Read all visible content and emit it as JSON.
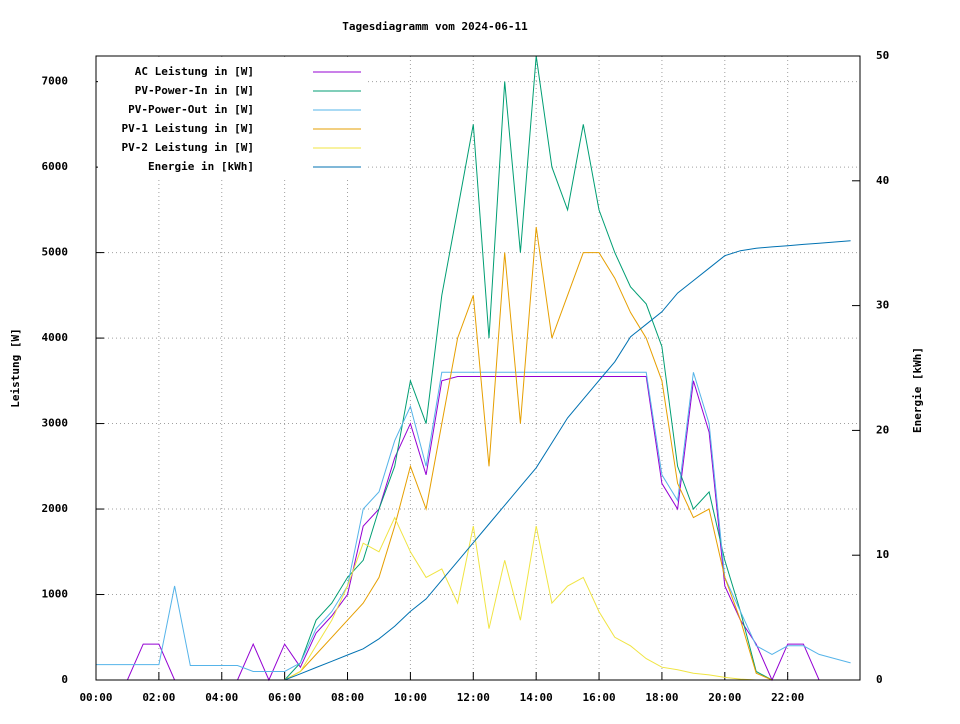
{
  "chart_data": {
    "type": "line",
    "title": "Tagesdiagramm vom 2024-06-11",
    "y_label": "Leistung [W]",
    "y2_label": "Energie [kWh]",
    "x": [
      0,
      0.5,
      1,
      1.5,
      2,
      2.5,
      3,
      3.5,
      4,
      4.5,
      5,
      5.5,
      6,
      6.5,
      7,
      7.5,
      8,
      8.5,
      9,
      9.5,
      10,
      10.5,
      11,
      11.5,
      12,
      12.5,
      13,
      13.5,
      14,
      14.5,
      15,
      15.5,
      16,
      16.5,
      17,
      17.5,
      18,
      18.5,
      19,
      19.5,
      20,
      20.5,
      21,
      21.5,
      22,
      22.5,
      23,
      23.5,
      24
    ],
    "xlim": [
      0,
      24.3
    ],
    "xticks": [
      {
        "value": 0,
        "label": "00:00"
      },
      {
        "value": 2,
        "label": "02:00"
      },
      {
        "value": 4,
        "label": "04:00"
      },
      {
        "value": 6,
        "label": "06:00"
      },
      {
        "value": 8,
        "label": "08:00"
      },
      {
        "value": 10,
        "label": "10:00"
      },
      {
        "value": 12,
        "label": "12:00"
      },
      {
        "value": 14,
        "label": "14:00"
      },
      {
        "value": 16,
        "label": "16:00"
      },
      {
        "value": 18,
        "label": "18:00"
      },
      {
        "value": 20,
        "label": "20:00"
      },
      {
        "value": 22,
        "label": "22:00"
      }
    ],
    "ylim": [
      0,
      7300
    ],
    "yticks": [
      0,
      1000,
      2000,
      3000,
      4000,
      5000,
      6000,
      7000
    ],
    "y2lim": [
      0,
      50
    ],
    "y2ticks": [
      0,
      10,
      20,
      30,
      40,
      50
    ],
    "grid": true,
    "legend": "top-left",
    "series": [
      {
        "name": "AC Leistung in [W]",
        "color": "#9400d3",
        "values": [
          0,
          0,
          0,
          420,
          420,
          0,
          0,
          0,
          0,
          0,
          420,
          0,
          420,
          150,
          550,
          750,
          1000,
          1800,
          2000,
          2600,
          3000,
          2400,
          3500,
          3550,
          3550,
          3550,
          3550,
          3550,
          3550,
          3550,
          3550,
          3550,
          3550,
          3550,
          3550,
          3550,
          2300,
          2000,
          3500,
          2900,
          1100,
          700,
          420,
          0,
          420,
          420,
          0,
          0,
          0
        ]
      },
      {
        "name": "PV-Power-In in [W]",
        "color": "#009e73",
        "values": [
          0,
          0,
          0,
          0,
          0,
          0,
          0,
          0,
          0,
          0,
          0,
          0,
          0,
          200,
          700,
          900,
          1200,
          1400,
          2000,
          2500,
          3500,
          3000,
          4500,
          5500,
          6500,
          4000,
          7000,
          5000,
          7300,
          6000,
          5500,
          6500,
          5500,
          5000,
          4600,
          4400,
          3900,
          2500,
          2000,
          2200,
          1400,
          800,
          100,
          0,
          0,
          0,
          0,
          0,
          0
        ]
      },
      {
        "name": "PV-Power-Out in [W]",
        "color": "#56b4e9",
        "values": [
          180,
          180,
          180,
          180,
          180,
          1100,
          170,
          170,
          170,
          170,
          100,
          100,
          100,
          200,
          600,
          800,
          1100,
          2000,
          2200,
          2800,
          3200,
          2500,
          3600,
          3600,
          3600,
          3600,
          3600,
          3600,
          3600,
          3600,
          3600,
          3600,
          3600,
          3600,
          3600,
          3600,
          2400,
          2100,
          3600,
          3000,
          1200,
          800,
          400,
          300,
          400,
          400,
          300,
          250,
          200
        ]
      },
      {
        "name": "PV-1 Leistung in [W]",
        "color": "#e69f00",
        "values": [
          0,
          0,
          0,
          0,
          0,
          0,
          0,
          0,
          0,
          0,
          0,
          0,
          0,
          100,
          300,
          500,
          700,
          900,
          1200,
          1800,
          2500,
          2000,
          3000,
          4000,
          4500,
          2500,
          5000,
          3000,
          5300,
          4000,
          4500,
          5000,
          5000,
          4700,
          4300,
          4000,
          3500,
          2300,
          1900,
          2000,
          1200,
          700,
          80,
          0,
          0,
          0,
          0,
          0,
          0
        ]
      },
      {
        "name": "PV-2 Leistung in [W]",
        "color": "#f0e442",
        "values": [
          0,
          0,
          0,
          0,
          0,
          0,
          0,
          0,
          0,
          0,
          0,
          0,
          0,
          100,
          400,
          700,
          1100,
          1600,
          1500,
          1900,
          1500,
          1200,
          1300,
          900,
          1800,
          600,
          1400,
          700,
          1800,
          900,
          1100,
          1200,
          800,
          500,
          400,
          250,
          150,
          120,
          80,
          60,
          30,
          10,
          0,
          0,
          0,
          0,
          0,
          0,
          0
        ]
      },
      {
        "name": "Energie in [kWh]",
        "color": "#0072b2",
        "axis": "y2",
        "values": [
          0,
          0,
          0,
          0,
          0,
          0,
          0,
          0,
          0,
          0,
          0,
          0,
          0,
          0.5,
          1,
          1.5,
          2,
          2.5,
          3.3,
          4.3,
          5.5,
          6.5,
          8,
          9.5,
          11,
          12.5,
          14,
          15.5,
          17,
          19,
          21,
          22.5,
          24,
          25.5,
          27.5,
          28.5,
          29.5,
          31,
          32,
          33,
          34,
          34.4,
          34.6,
          34.7,
          34.8,
          34.9,
          35,
          35.1,
          35.2
        ]
      }
    ]
  }
}
